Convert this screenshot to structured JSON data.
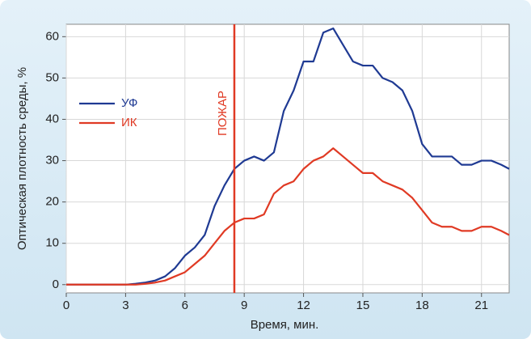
{
  "chart_data": {
    "type": "line",
    "xlabel": "Время, мин.",
    "ylabel": "Оптическая плотность среды, %",
    "x": [
      0,
      0.5,
      1,
      1.5,
      2,
      2.5,
      3,
      3.5,
      4,
      4.5,
      5,
      5.5,
      6,
      6.5,
      7,
      7.5,
      8,
      8.5,
      9,
      9.5,
      10,
      10.5,
      11,
      11.5,
      12,
      12.5,
      13,
      13.5,
      14,
      14.5,
      15,
      15.5,
      16,
      16.5,
      17,
      17.5,
      18,
      18.5,
      19,
      19.5,
      20,
      20.5,
      21,
      21.5,
      22,
      22.4
    ],
    "series": [
      {
        "name": "УФ",
        "color": "#1f3a93",
        "values": [
          0,
          0,
          0,
          0,
          0,
          0,
          0,
          0.2,
          0.5,
          1,
          2,
          4,
          7,
          9,
          12,
          19,
          24,
          28,
          30,
          31,
          30,
          32,
          42,
          47,
          54,
          54,
          61,
          62,
          58,
          54,
          53,
          53,
          50,
          49,
          47,
          42,
          34,
          31,
          31,
          31,
          29,
          29,
          30,
          30,
          29,
          28
        ]
      },
      {
        "name": "ИК",
        "color": "#e03a24",
        "values": [
          0,
          0,
          0,
          0,
          0,
          0,
          0,
          0,
          0.2,
          0.5,
          1,
          2,
          3,
          5,
          7,
          10,
          13,
          15,
          16,
          16,
          17,
          22,
          24,
          25,
          28,
          30,
          31,
          33,
          31,
          29,
          27,
          27,
          25,
          24,
          23,
          21,
          18,
          15,
          14,
          14,
          13,
          13,
          14,
          14,
          13,
          12
        ]
      }
    ],
    "annotation": {
      "text": "ПОЖАР",
      "x": 8.5,
      "color": "#e03a24"
    },
    "xlim": [
      0,
      22.4
    ],
    "xticks": [
      0,
      3,
      6,
      9,
      12,
      15,
      18,
      21
    ],
    "ylim": [
      -2,
      63
    ],
    "yticks": [
      0,
      10,
      20,
      30,
      40,
      50,
      60
    ],
    "grid": true,
    "legend": "upper left"
  }
}
